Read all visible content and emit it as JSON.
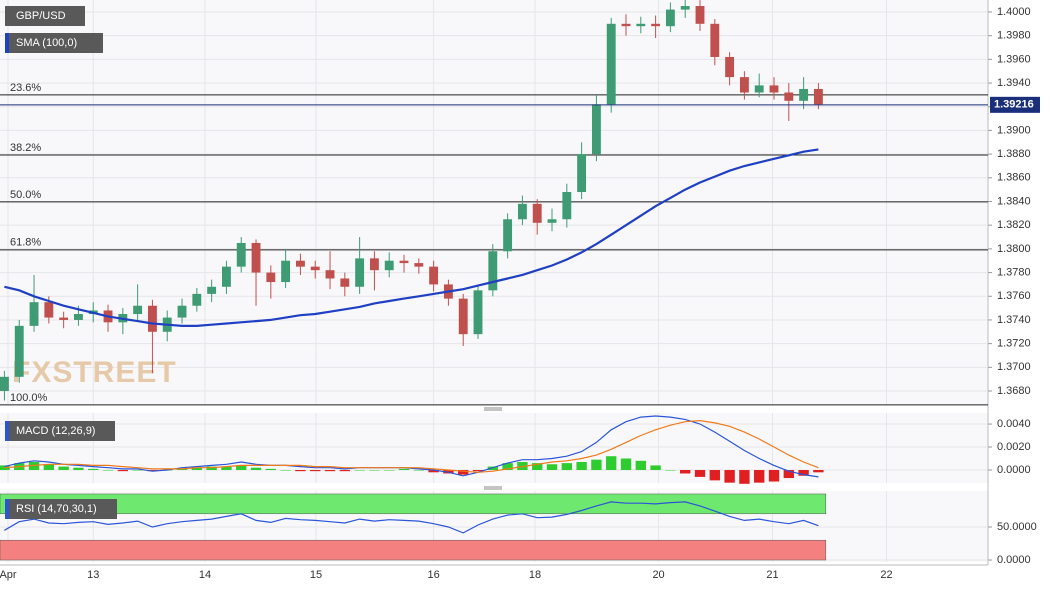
{
  "chart_data": [
    {
      "type": "candlestick",
      "title": "GBP/USD",
      "x": [
        0,
        1,
        2,
        3,
        4,
        5,
        6,
        7,
        8,
        9,
        10,
        11,
        12,
        13,
        14,
        15,
        16,
        17,
        18,
        19,
        20,
        21,
        22,
        23,
        24,
        25,
        26,
        27,
        28,
        29,
        30,
        31,
        32,
        33,
        34,
        35,
        36,
        37,
        38,
        39,
        40,
        41,
        42,
        43,
        44,
        45,
        46,
        47,
        48,
        49,
        50,
        51,
        52,
        53,
        54,
        55
      ],
      "open": [
        1.368,
        1.3692,
        1.3735,
        1.3755,
        1.3742,
        1.374,
        1.3745,
        1.3748,
        1.3738,
        1.3745,
        1.3752,
        1.373,
        1.3742,
        1.3752,
        1.3762,
        1.3768,
        1.3785,
        1.3805,
        1.378,
        1.3772,
        1.379,
        1.3785,
        1.3782,
        1.3775,
        1.3768,
        1.3792,
        1.3782,
        1.379,
        1.3788,
        1.3785,
        1.377,
        1.3758,
        1.3728,
        1.3765,
        1.3798,
        1.3825,
        1.3838,
        1.3822,
        1.3825,
        1.3848,
        1.388,
        1.3922,
        1.399,
        1.3988,
        1.399,
        1.3988,
        1.4002,
        1.4005,
        1.399,
        1.3962,
        1.3945,
        1.3932,
        1.3938,
        1.3932,
        1.3925,
        1.3935
      ],
      "high": [
        1.3697,
        1.374,
        1.3778,
        1.376,
        1.3747,
        1.3752,
        1.3755,
        1.3753,
        1.375,
        1.377,
        1.3757,
        1.3748,
        1.3758,
        1.3767,
        1.3774,
        1.379,
        1.381,
        1.3808,
        1.3786,
        1.38,
        1.3796,
        1.379,
        1.3798,
        1.378,
        1.381,
        1.3798,
        1.3797,
        1.3795,
        1.3792,
        1.379,
        1.3774,
        1.3762,
        1.377,
        1.3804,
        1.383,
        1.3845,
        1.3842,
        1.3834,
        1.3855,
        1.389,
        1.393,
        1.3995,
        1.3998,
        1.3996,
        1.3997,
        1.4008,
        1.4012,
        1.401,
        1.3994,
        1.3966,
        1.395,
        1.3948,
        1.3945,
        1.394,
        1.3945,
        1.394
      ],
      "low": [
        1.3672,
        1.3687,
        1.373,
        1.3737,
        1.3733,
        1.3735,
        1.3738,
        1.373,
        1.3728,
        1.374,
        1.3695,
        1.3722,
        1.3737,
        1.3747,
        1.3755,
        1.3762,
        1.378,
        1.3752,
        1.3758,
        1.3767,
        1.3778,
        1.3775,
        1.3766,
        1.376,
        1.3762,
        1.3765,
        1.3776,
        1.378,
        1.3779,
        1.3764,
        1.3752,
        1.3718,
        1.3724,
        1.376,
        1.3792,
        1.382,
        1.3812,
        1.3815,
        1.3818,
        1.3842,
        1.3874,
        1.3915,
        1.398,
        1.3982,
        1.3978,
        1.3983,
        1.3995,
        1.3984,
        1.3955,
        1.3938,
        1.3926,
        1.3928,
        1.3926,
        1.3908,
        1.3918,
        1.3918
      ],
      "close": [
        1.3692,
        1.3735,
        1.3755,
        1.3742,
        1.374,
        1.3745,
        1.3748,
        1.3738,
        1.3745,
        1.3752,
        1.373,
        1.3742,
        1.3752,
        1.3762,
        1.3768,
        1.3785,
        1.3805,
        1.378,
        1.3772,
        1.379,
        1.3785,
        1.3782,
        1.3775,
        1.3768,
        1.3792,
        1.3782,
        1.379,
        1.3788,
        1.3785,
        1.377,
        1.3758,
        1.3728,
        1.3765,
        1.3798,
        1.3825,
        1.3838,
        1.3822,
        1.3825,
        1.3848,
        1.388,
        1.3922,
        1.399,
        1.3988,
        1.399,
        1.3988,
        1.4002,
        1.4005,
        1.399,
        1.3962,
        1.3945,
        1.3932,
        1.3938,
        1.3932,
        1.3925,
        1.3935,
        1.3922
      ],
      "up_color": "#3e9b73",
      "down_color": "#c0504d",
      "series": [
        {
          "name": "SMA (100,0)",
          "color": "#1f3fc4",
          "values": [
            1.3768,
            1.3765,
            1.376,
            1.3756,
            1.3752,
            1.3749,
            1.3746,
            1.3743,
            1.3741,
            1.3739,
            1.3737,
            1.3736,
            1.3735,
            1.3735,
            1.3736,
            1.3737,
            1.3738,
            1.3739,
            1.374,
            1.3742,
            1.3744,
            1.3745,
            1.3747,
            1.3749,
            1.3751,
            1.3754,
            1.3756,
            1.3758,
            1.376,
            1.3762,
            1.3764,
            1.3766,
            1.3769,
            1.3772,
            1.3775,
            1.3778,
            1.3782,
            1.3786,
            1.3791,
            1.3797,
            1.3804,
            1.3812,
            1.382,
            1.3828,
            1.3836,
            1.3843,
            1.385,
            1.3856,
            1.3861,
            1.3866,
            1.387,
            1.3873,
            1.3876,
            1.3879,
            1.3882,
            1.3884
          ]
        }
      ],
      "fib_levels": [
        {
          "label": "23.6%",
          "value": 1.393
        },
        {
          "label": "38.2%",
          "value": 1.38793
        },
        {
          "label": "50.0%",
          "value": 1.38397
        },
        {
          "label": "61.8%",
          "value": 1.37992
        },
        {
          "label": "100.0%",
          "value": 1.36683
        }
      ],
      "last_price": {
        "value": 1.39216,
        "label": "1.39216"
      },
      "watermark": "FXSTREET",
      "xlim": [
        -0.3,
        66.46
      ],
      "xticks": [
        {
          "value": 0.24,
          "label": "Apr"
        },
        {
          "value": 6.0,
          "label": "13"
        },
        {
          "value": 13.55,
          "label": "14"
        },
        {
          "value": 21.05,
          "label": "15"
        },
        {
          "value": 29.0,
          "label": "16"
        },
        {
          "value": 35.85,
          "label": "18"
        },
        {
          "value": 44.2,
          "label": "20"
        },
        {
          "value": 51.9,
          "label": "21"
        },
        {
          "value": 59.6,
          "label": "22"
        }
      ],
      "ylim": [
        1.36682,
        1.40101
      ],
      "yticks": [
        {
          "value": 1.368,
          "label": "1.3680"
        },
        {
          "value": 1.37,
          "label": "1.3700"
        },
        {
          "value": 1.372,
          "label": "1.3720"
        },
        {
          "value": 1.374,
          "label": "1.3740"
        },
        {
          "value": 1.376,
          "label": "1.3760"
        },
        {
          "value": 1.378,
          "label": "1.3780"
        },
        {
          "value": 1.38,
          "label": "1.3800"
        },
        {
          "value": 1.382,
          "label": "1.3820"
        },
        {
          "value": 1.384,
          "label": "1.3840"
        },
        {
          "value": 1.386,
          "label": "1.3860"
        },
        {
          "value": 1.388,
          "label": "1.3880"
        },
        {
          "value": 1.39,
          "label": "1.3900"
        },
        {
          "value": 1.392,
          "label": "1.3920"
        },
        {
          "value": 1.394,
          "label": "1.3940"
        },
        {
          "value": 1.396,
          "label": "1.3960"
        },
        {
          "value": 1.398,
          "label": "1.3980"
        },
        {
          "value": 1.4,
          "label": "1.4000"
        }
      ],
      "grid": true
    },
    {
      "type": "macd",
      "title": "MACD (12,26,9)",
      "histogram": {
        "up_color": "#2ecc2e",
        "down_color": "#e02020",
        "values": [
          0.0004,
          0.0006,
          0.0007,
          0.0005,
          0.0003,
          0.0002,
          0.0001,
          0.0,
          -0.0001,
          0.0,
          -0.0001,
          0.0,
          0.0001,
          0.0002,
          0.0003,
          0.0003,
          0.0004,
          0.0002,
          0.0001,
          0.0,
          -0.0001,
          -0.0001,
          -0.0001,
          -0.0001,
          0.0,
          0.0,
          0.0,
          0.0001,
          0.0,
          -0.0002,
          -0.0003,
          -0.0004,
          -0.0001,
          0.0003,
          0.0006,
          0.0007,
          0.0006,
          0.0005,
          0.0006,
          0.0007,
          0.0009,
          0.0012,
          0.001,
          0.0008,
          0.0004,
          0.0,
          -0.0003,
          -0.0006,
          -0.0009,
          -0.0011,
          -0.0012,
          -0.0011,
          -0.001,
          -0.0007,
          -0.0005,
          -0.0002
        ]
      },
      "series": [
        {
          "color": "#2a55d8",
          "values": [
            0.0003,
            0.0006,
            0.0008,
            0.0007,
            0.0005,
            0.0004,
            0.0003,
            0.0002,
            0.0001,
            0.0001,
            -0.0001,
            0.0,
            0.0002,
            0.0003,
            0.0004,
            0.0005,
            0.0007,
            0.0005,
            0.0004,
            0.0004,
            0.0003,
            0.0002,
            0.0002,
            0.0001,
            0.0002,
            0.0002,
            0.0002,
            0.0002,
            0.0001,
            0.0,
            -0.0002,
            -0.0005,
            -0.0002,
            0.0002,
            0.0006,
            0.0009,
            0.0009,
            0.001,
            0.0012,
            0.0016,
            0.0024,
            0.0035,
            0.0042,
            0.0046,
            0.0047,
            0.0046,
            0.0044,
            0.004,
            0.0033,
            0.0025,
            0.0017,
            0.001,
            0.0004,
            -0.0001,
            -0.0004,
            -0.0006
          ]
        },
        {
          "color": "#f07a1a",
          "values": [
            0.0002,
            0.0003,
            0.0004,
            0.0005,
            0.0005,
            0.0005,
            0.0004,
            0.0004,
            0.0003,
            0.0002,
            0.0001,
            0.0001,
            0.0001,
            0.0002,
            0.0002,
            0.0003,
            0.0004,
            0.0004,
            0.0004,
            0.0004,
            0.0004,
            0.0003,
            0.0003,
            0.0002,
            0.0002,
            0.0002,
            0.0002,
            0.0002,
            0.0002,
            0.0001,
            0.0,
            -0.0001,
            -0.0002,
            -0.0001,
            0.0001,
            0.0003,
            0.0005,
            0.0007,
            0.0008,
            0.001,
            0.0013,
            0.0018,
            0.0024,
            0.003,
            0.0035,
            0.0039,
            0.0042,
            0.0043,
            0.0041,
            0.0038,
            0.0033,
            0.0027,
            0.002,
            0.0013,
            0.0007,
            0.0002
          ]
        }
      ],
      "ylim": [
        -0.00113,
        0.00496
      ],
      "yticks": [
        {
          "value": 0.0,
          "label": "0.0000"
        },
        {
          "value": 0.002,
          "label": "0.0020"
        },
        {
          "value": 0.004,
          "label": "0.0040"
        }
      ],
      "grid": true
    },
    {
      "type": "rsi",
      "title": "RSI (14,70,30,1)",
      "bands": [
        {
          "range": [
            70,
            100
          ],
          "color": "#6ee86e"
        },
        {
          "range": [
            0,
            30
          ],
          "color": "#f58080"
        }
      ],
      "series": [
        {
          "color": "#2a55d8",
          "values": [
            45,
            58,
            62,
            56,
            55,
            57,
            58,
            54,
            56,
            59,
            50,
            55,
            58,
            60,
            62,
            66,
            70,
            60,
            57,
            63,
            61,
            60,
            58,
            56,
            62,
            59,
            61,
            60,
            59,
            55,
            50,
            41,
            53,
            62,
            68,
            70,
            64,
            65,
            69,
            75,
            82,
            88,
            86,
            86,
            85,
            87,
            88,
            82,
            74,
            66,
            60,
            62,
            58,
            55,
            60,
            52
          ]
        }
      ],
      "ylim": [
        -3,
        104.5
      ],
      "yticks": [
        {
          "value": 0,
          "label": "0.0000"
        },
        {
          "value": 50,
          "label": "50.0000"
        }
      ],
      "grid": true
    }
  ]
}
